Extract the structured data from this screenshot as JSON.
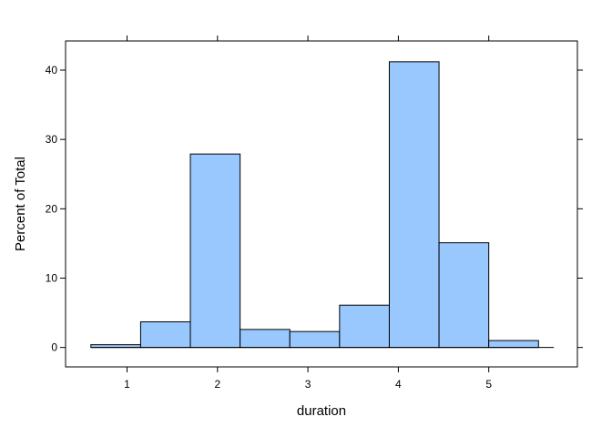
{
  "chart_data": {
    "type": "bar",
    "title": "",
    "xlabel": "duration",
    "ylabel": "Percent of Total",
    "xlim": [
      0.32,
      5.98
    ],
    "ylim": [
      -2.8,
      44.2
    ],
    "x_ticks": [
      "1",
      "2",
      "3",
      "4",
      "5"
    ],
    "y_ticks": [
      "0",
      "10",
      "20",
      "30",
      "40"
    ],
    "bins": [
      {
        "start": 0.6,
        "end": 1.15,
        "value": 0.4
      },
      {
        "start": 1.15,
        "end": 1.7,
        "value": 3.7
      },
      {
        "start": 1.7,
        "end": 2.25,
        "value": 27.9
      },
      {
        "start": 2.25,
        "end": 2.8,
        "value": 2.6
      },
      {
        "start": 2.8,
        "end": 3.35,
        "value": 2.3
      },
      {
        "start": 3.35,
        "end": 3.9,
        "value": 6.1
      },
      {
        "start": 3.9,
        "end": 4.45,
        "value": 41.2
      },
      {
        "start": 4.45,
        "end": 5.0,
        "value": 15.1
      },
      {
        "start": 5.0,
        "end": 5.55,
        "value": 1.0
      }
    ],
    "baseline_range": [
      0.6,
      5.72
    ],
    "grid": false,
    "legend": "none",
    "bar_fill": "#99c8ff",
    "bar_stroke": "#000000"
  }
}
